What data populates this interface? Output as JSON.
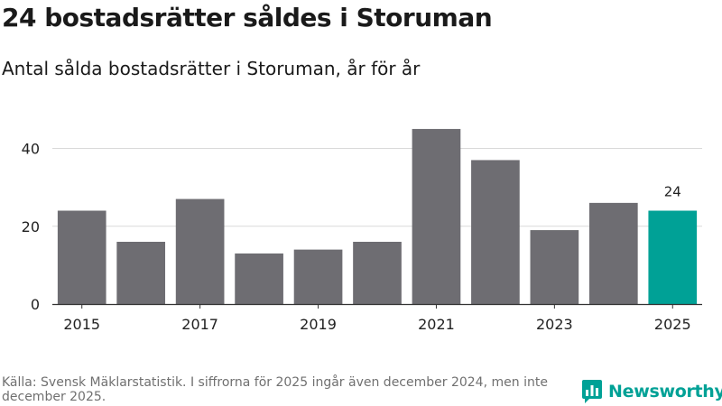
{
  "header": {
    "title": "24 bostadsrätter såldes i Storuman",
    "subtitle": "Antal sålda bostadsrätter i Storuman, år för år"
  },
  "footer": {
    "source": "Källa: Svensk Mäklarstatistik. I siffrorna för 2025 ingår även december 2024, men inte december 2025.",
    "brand": "Newsworthy"
  },
  "colors": {
    "bar": "#6e6d72",
    "highlight": "#00a196",
    "grid": "#d9d9d9",
    "axis": "#333333"
  },
  "chart_data": {
    "type": "bar",
    "title": "24 bostadsrätter såldes i Storuman",
    "subtitle": "Antal sålda bostadsrätter i Storuman, år för år",
    "xlabel": "",
    "ylabel": "",
    "categories": [
      "2015",
      "2016",
      "2017",
      "2018",
      "2019",
      "2020",
      "2021",
      "2022",
      "2023",
      "2024",
      "2025"
    ],
    "values": [
      24,
      16,
      27,
      13,
      14,
      16,
      45,
      37,
      19,
      26,
      24
    ],
    "x_tick_labels": [
      "2015",
      "2017",
      "2019",
      "2021",
      "2023",
      "2025"
    ],
    "y_ticks": [
      0,
      20,
      40
    ],
    "ylim": [
      0,
      48
    ],
    "grid": true,
    "highlight_category": "2025",
    "data_labels": [
      {
        "category": "2025",
        "text": "24"
      }
    ]
  }
}
